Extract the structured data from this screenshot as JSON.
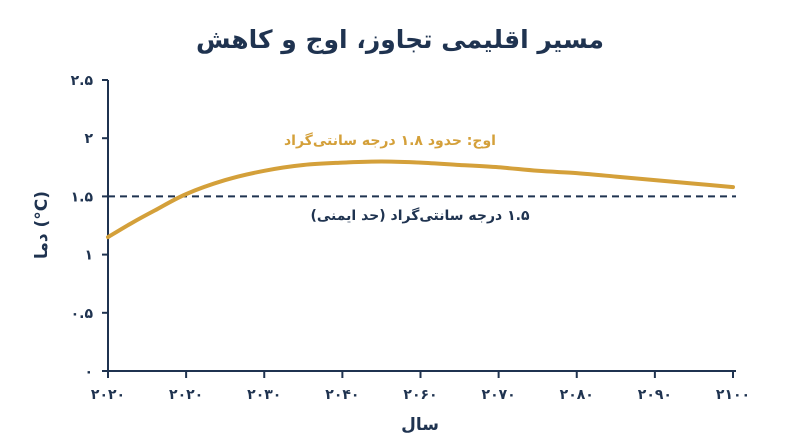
{
  "chart_data": {
    "type": "line",
    "title": "مسیر اقلیمی تجاوز، اوج و کاهش",
    "xlabel": "سال",
    "ylabel": "دما (°C)",
    "x_tick_labels": [
      "۲۰۲۰",
      "۲۰۲۰",
      "۲۰۳۰",
      "۲۰۴۰",
      "۲۰۶۰",
      "۲۰۷۰",
      "۲۰۸۰",
      "۲۰۹۰",
      "۲۱۰۰"
    ],
    "y_tick_labels": [
      "۰",
      "۰.۵",
      "۱",
      "۱.۵",
      "۲",
      "۲.۵"
    ],
    "y_ticks": [
      0,
      0.5,
      1,
      1.5,
      2,
      2.5
    ],
    "ylim": [
      0,
      2.5
    ],
    "x_positions": [
      0,
      1,
      2,
      3,
      4,
      5,
      6,
      7,
      8
    ],
    "series": [
      {
        "color": "#d4a03a",
        "x": [
          0,
          0.3,
          0.6,
          1,
          1.5,
          2,
          2.5,
          3,
          3.5,
          4,
          4.5,
          5,
          5.5,
          6,
          6.5,
          7,
          7.5,
          8
        ],
        "y": [
          1.15,
          1.27,
          1.38,
          1.52,
          1.64,
          1.72,
          1.77,
          1.79,
          1.8,
          1.79,
          1.77,
          1.75,
          1.72,
          1.7,
          1.67,
          1.64,
          1.61,
          1.58
        ]
      }
    ],
    "reference_line": {
      "y": 1.5,
      "label": "۱.۵ درجه سانتی‌گراد (حد ایمنی)",
      "color": "#1f3350",
      "style": "dashed"
    },
    "peak_annotation": {
      "text": "اوج: حدود ۱.۸ درجه سانتی‌گراد",
      "color": "#d4a03a"
    },
    "grid": false
  }
}
